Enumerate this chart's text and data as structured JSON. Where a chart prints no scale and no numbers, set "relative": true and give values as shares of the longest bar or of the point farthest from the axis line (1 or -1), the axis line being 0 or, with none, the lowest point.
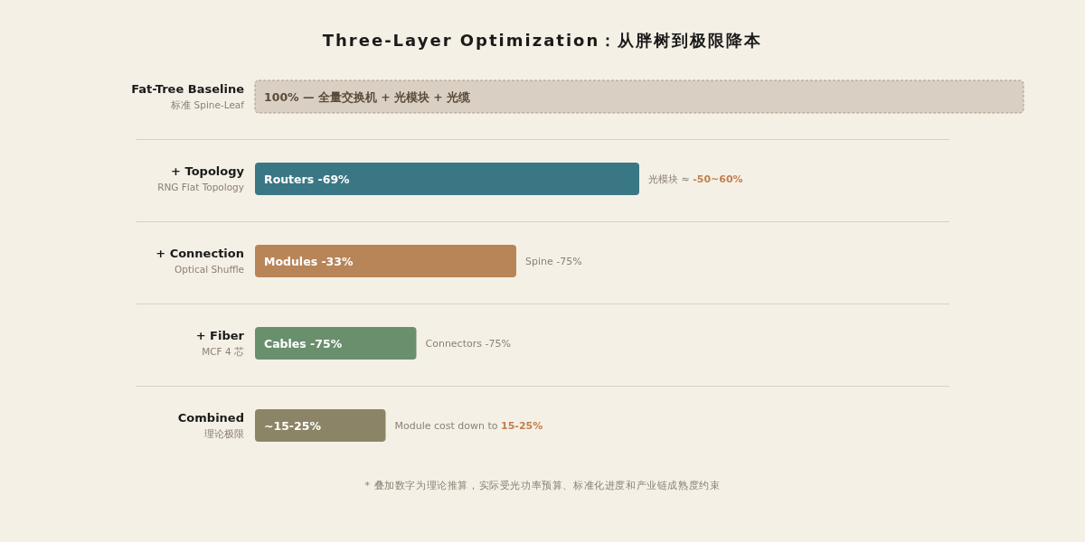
{
  "chart_data": {
    "type": "bar",
    "orientation": "horizontal",
    "relative": true,
    "title": "Three-Layer Optimization：从胖树到极限降本",
    "categories": [
      "Fat-Tree Baseline\n标准 Spine-Leaf",
      "+ Topology\nRNG Flat Topology",
      "+ Connection\nOptical Shuffle",
      "+ Fiber\nMCF 4 芯",
      "Combined\n理论极限"
    ],
    "values": [
      1,
      0.5,
      0.34,
      0.21,
      0.17
    ],
    "colors": [
      "#d9d0c3",
      "#3a7785",
      "#b88559",
      "#6a8f6d",
      "#8c8466"
    ],
    "annotations": [
      {
        "text": "100% — 全量交换机 + 光模块 + 光缆",
        "x": 0,
        "y": "Fat-Tree Baseline\n标准 Spine-Leaf"
      },
      {
        "text": "Routers -69%",
        "x": 0,
        "y": "+ Topology\nRNG Flat Topology"
      },
      {
        "text": "Modules -33%",
        "x": 0,
        "y": "+ Connection\nOptical Shuffle"
      },
      {
        "text": "Cables -75%",
        "x": 0,
        "y": "+ Fiber\nMCF 4 芯"
      },
      {
        "text": "~15-25%",
        "x": 0,
        "y": "Combined\n理论极限"
      },
      {
        "text": "光模块 ≈ -50~60%",
        "x": 0.5,
        "y": "+ Topology\nRNG Flat Topology"
      },
      {
        "text": "Spine -75%",
        "x": 0.34,
        "y": "+ Connection\nOptical Shuffle"
      },
      {
        "text": "Connectors -75%",
        "x": 0.21,
        "y": "+ Fiber\nMCF 4 芯"
      },
      {
        "text": "Module cost down to 15-25%",
        "x": 0.17,
        "y": "Combined\n理论极限"
      },
      "* 叠加数字为理论推算，实际受光功率预算、标准化进度和产业链成熟度约束"
    ]
  }
}
